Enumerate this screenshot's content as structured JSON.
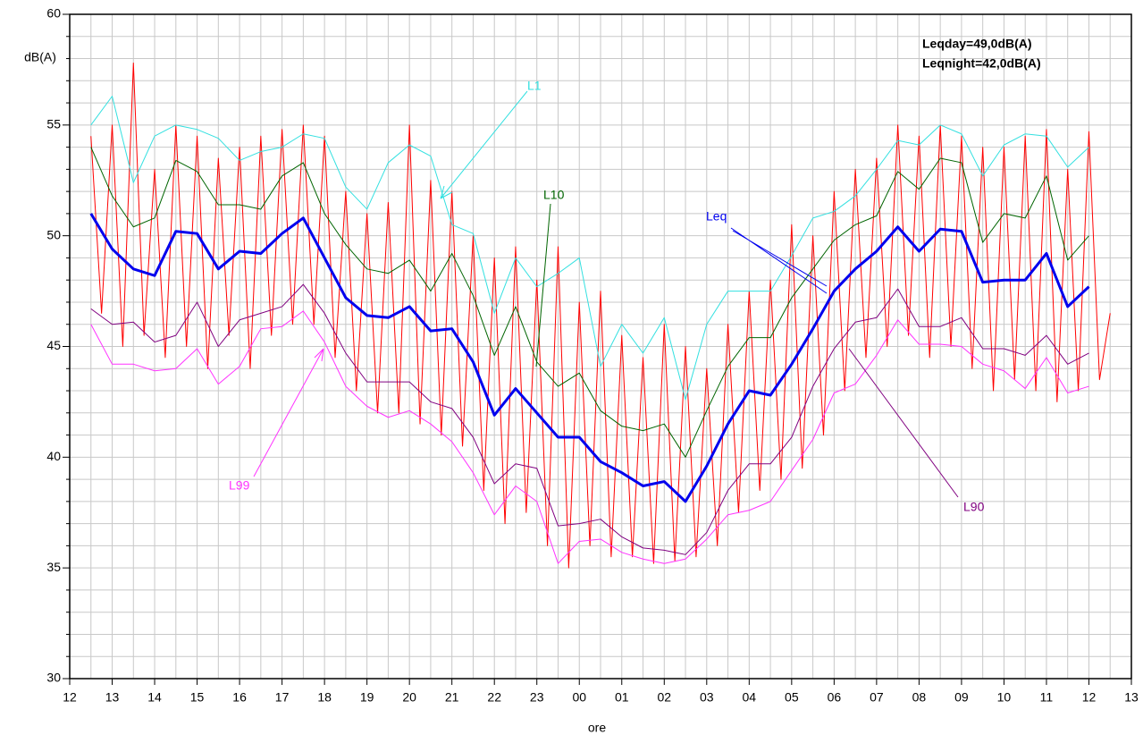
{
  "chart_data": {
    "type": "line",
    "y_label": "dB(A)",
    "x_label": "ore",
    "annotations": [
      "Leqday=49,0dB(A)",
      "Leqnight=42,0dB(A)"
    ],
    "xlim": [
      0,
      25
    ],
    "ylim": [
      30,
      60
    ],
    "xticks": [
      {
        "value": 0,
        "label": "12"
      },
      {
        "value": 1,
        "label": "13"
      },
      {
        "value": 2,
        "label": "14"
      },
      {
        "value": 3,
        "label": "15"
      },
      {
        "value": 4,
        "label": "16"
      },
      {
        "value": 5,
        "label": "17"
      },
      {
        "value": 6,
        "label": "18"
      },
      {
        "value": 7,
        "label": "19"
      },
      {
        "value": 8,
        "label": "20"
      },
      {
        "value": 9,
        "label": "21"
      },
      {
        "value": 10,
        "label": "22"
      },
      {
        "value": 11,
        "label": "23"
      },
      {
        "value": 12,
        "label": "00"
      },
      {
        "value": 13,
        "label": "01"
      },
      {
        "value": 14,
        "label": "02"
      },
      {
        "value": 15,
        "label": "03"
      },
      {
        "value": 16,
        "label": "04"
      },
      {
        "value": 17,
        "label": "05"
      },
      {
        "value": 18,
        "label": "06"
      },
      {
        "value": 19,
        "label": "07"
      },
      {
        "value": 20,
        "label": "08"
      },
      {
        "value": 21,
        "label": "09"
      },
      {
        "value": 22,
        "label": "10"
      },
      {
        "value": 23,
        "label": "11"
      },
      {
        "value": 24,
        "label": "12"
      },
      {
        "value": 25,
        "label": "13"
      }
    ],
    "yticks": [
      30,
      35,
      40,
      45,
      50,
      55,
      60
    ],
    "grid": true,
    "series": [
      {
        "color": "#ff0000",
        "width": 1,
        "x": [
          0.5,
          0.75,
          1,
          1.25,
          1.5,
          1.75,
          2,
          2.25,
          2.5,
          2.75,
          3,
          3.25,
          3.5,
          3.75,
          4,
          4.25,
          4.5,
          4.75,
          5,
          5.25,
          5.5,
          5.75,
          6,
          6.25,
          6.5,
          6.75,
          7,
          7.25,
          7.5,
          7.75,
          8,
          8.25,
          8.5,
          8.75,
          9,
          9.25,
          9.5,
          9.75,
          10,
          10.25,
          10.5,
          10.75,
          11,
          11.25,
          11.5,
          11.75,
          12,
          12.25,
          12.5,
          12.75,
          13,
          13.25,
          13.5,
          13.75,
          14,
          14.25,
          14.5,
          14.75,
          15,
          15.25,
          15.5,
          15.75,
          16,
          16.25,
          16.5,
          16.75,
          17,
          17.25,
          17.5,
          17.75,
          18,
          18.25,
          18.5,
          18.75,
          19,
          19.25,
          19.5,
          19.75,
          20,
          20.25,
          20.5,
          20.75,
          21,
          21.25,
          21.5,
          21.75,
          22,
          22.25,
          22.5,
          22.75,
          23,
          23.25,
          23.5,
          23.75,
          24,
          24.25,
          24.5
        ],
        "values": [
          54.5,
          46.5,
          55,
          45,
          57.8,
          45.5,
          53,
          44.5,
          55,
          45,
          54.5,
          44,
          53.5,
          45.5,
          54,
          44,
          54.5,
          45.5,
          54.8,
          46,
          55,
          46,
          54.5,
          44.5,
          52,
          43,
          51,
          42,
          51.5,
          42,
          55,
          41.5,
          52.5,
          41,
          52,
          40.5,
          50,
          38.5,
          49,
          37,
          49.5,
          37.5,
          48,
          36,
          49.5,
          35,
          47,
          36,
          47.5,
          35.5,
          45.5,
          35.5,
          44.5,
          35.2,
          46,
          35.3,
          45,
          35.5,
          44,
          36,
          46,
          37.5,
          47.5,
          38.5,
          48,
          39,
          50.5,
          39.5,
          50,
          41,
          52,
          43,
          53,
          44.5,
          53.5,
          45,
          55,
          45.5,
          54.5,
          44.5,
          55,
          45,
          54.5,
          44,
          54,
          43,
          54,
          43.5,
          54.5,
          43,
          54.8,
          42.5,
          53,
          43,
          54.7,
          43.5,
          46.5
        ]
      },
      {
        "name": "L99",
        "color": "#ff33ff",
        "width": 1,
        "x": [
          0.5,
          1,
          1.5,
          2,
          2.5,
          3,
          3.5,
          4,
          4.5,
          5,
          5.5,
          6,
          6.5,
          7,
          7.5,
          8,
          8.5,
          9,
          9.5,
          10,
          10.5,
          11,
          11.5,
          12,
          12.5,
          13,
          13.5,
          14,
          14.5,
          15,
          15.5,
          16,
          16.5,
          17,
          17.5,
          18,
          18.5,
          19,
          19.5,
          20,
          20.5,
          21,
          21.5,
          22,
          22.5,
          23,
          23.5,
          24
        ],
        "values": [
          46.0,
          44.2,
          44.2,
          43.9,
          44.0,
          44.9,
          43.3,
          44.1,
          45.8,
          45.9,
          46.6,
          45.2,
          43.2,
          42.3,
          41.8,
          42.1,
          41.5,
          40.7,
          39.3,
          37.4,
          38.7,
          38.0,
          35.2,
          36.2,
          36.3,
          35.7,
          35.4,
          35.2,
          35.4,
          36.3,
          37.4,
          37.6,
          38.0,
          39.4,
          40.8,
          42.9,
          43.3,
          44.6,
          46.2,
          45.1,
          45.1,
          45.0,
          44.2,
          43.9,
          43.1,
          44.5,
          42.9,
          43.2
        ]
      },
      {
        "name": "L90",
        "color": "#800080",
        "width": 1,
        "x": [
          0.5,
          1,
          1.5,
          2,
          2.5,
          3,
          3.5,
          4,
          4.5,
          5,
          5.5,
          6,
          6.5,
          7,
          7.5,
          8,
          8.5,
          9,
          9.5,
          10,
          10.5,
          11,
          11.5,
          12,
          12.5,
          13,
          13.5,
          14,
          14.5,
          15,
          15.5,
          16,
          16.5,
          17,
          17.5,
          18,
          18.5,
          19,
          19.5,
          20,
          20.5,
          21,
          21.5,
          22,
          22.5,
          23,
          23.5,
          24
        ],
        "values": [
          46.7,
          46.0,
          46.1,
          45.2,
          45.5,
          47.0,
          45.0,
          46.2,
          46.5,
          46.8,
          47.8,
          46.5,
          44.7,
          43.4,
          43.4,
          43.4,
          42.5,
          42.2,
          40.9,
          38.8,
          39.7,
          39.5,
          36.9,
          37.0,
          37.2,
          36.4,
          35.9,
          35.8,
          35.6,
          36.6,
          38.5,
          39.7,
          39.7,
          40.9,
          43.2,
          44.9,
          46.1,
          46.3,
          47.6,
          45.9,
          45.9,
          46.3,
          44.9,
          44.9,
          44.6,
          45.5,
          44.2,
          44.7
        ]
      },
      {
        "name": "L10",
        "color": "#006400",
        "width": 1,
        "x": [
          0.5,
          1,
          1.5,
          2,
          2.5,
          3,
          3.5,
          4,
          4.5,
          5,
          5.5,
          6,
          6.5,
          7,
          7.5,
          8,
          8.5,
          9,
          9.5,
          10,
          10.5,
          11,
          11.5,
          12,
          12.5,
          13,
          13.5,
          14,
          14.5,
          15,
          15.5,
          16,
          16.5,
          17,
          17.5,
          18,
          18.5,
          19,
          19.5,
          20,
          20.5,
          21,
          21.5,
          22,
          22.5,
          23,
          23.5,
          24
        ],
        "values": [
          54.0,
          51.8,
          50.4,
          50.8,
          53.4,
          52.9,
          51.4,
          51.4,
          51.2,
          52.7,
          53.3,
          51.0,
          49.6,
          48.5,
          48.3,
          48.9,
          47.5,
          49.2,
          47.3,
          44.6,
          46.8,
          44.3,
          43.2,
          43.8,
          42.1,
          41.4,
          41.2,
          41.5,
          40.0,
          42.1,
          44.1,
          45.4,
          45.4,
          47.2,
          48.5,
          49.8,
          50.5,
          50.9,
          52.9,
          52.1,
          53.5,
          53.3,
          49.7,
          51.0,
          50.8,
          52.7,
          48.9,
          50.0
        ]
      },
      {
        "name": "L1",
        "color": "#33e0e0",
        "width": 1,
        "x": [
          0.5,
          1,
          1.5,
          2,
          2.5,
          3,
          3.5,
          4,
          4.5,
          5,
          5.5,
          6,
          6.5,
          7,
          7.5,
          8,
          8.5,
          9,
          9.5,
          10,
          10.5,
          11,
          11.5,
          12,
          12.5,
          13,
          13.5,
          14,
          14.5,
          15,
          15.5,
          16,
          16.5,
          17,
          17.5,
          18,
          18.5,
          19,
          19.5,
          20,
          20.5,
          21,
          21.5,
          22,
          22.5,
          23,
          23.5,
          24
        ],
        "values": [
          55.0,
          56.3,
          52.4,
          54.5,
          55.0,
          54.8,
          54.4,
          53.4,
          53.8,
          54.0,
          54.6,
          54.4,
          52.2,
          51.2,
          53.3,
          54.1,
          53.6,
          50.5,
          50.1,
          46.5,
          49.0,
          47.7,
          48.3,
          49.0,
          44.1,
          46.0,
          44.7,
          46.3,
          42.6,
          46.0,
          47.5,
          47.5,
          47.5,
          49.1,
          50.8,
          51.1,
          51.8,
          53.0,
          54.3,
          54.1,
          55.0,
          54.6,
          52.7,
          54.1,
          54.6,
          54.5,
          53.1,
          54.0
        ]
      },
      {
        "name": "Leq",
        "color": "#0000ee",
        "width": 3,
        "x": [
          0.5,
          1,
          1.5,
          2,
          2.5,
          3,
          3.5,
          4,
          4.5,
          5,
          5.5,
          6,
          6.5,
          7,
          7.5,
          8,
          8.5,
          9,
          9.5,
          10,
          10.5,
          11,
          11.5,
          12,
          12.5,
          13,
          13.5,
          14,
          14.5,
          15,
          15.5,
          16,
          16.5,
          17,
          17.5,
          18,
          18.5,
          19,
          19.5,
          20,
          20.5,
          21,
          21.5,
          22,
          22.5,
          23,
          23.5,
          24
        ],
        "values": [
          51.0,
          49.4,
          48.5,
          48.2,
          50.2,
          50.1,
          48.5,
          49.3,
          49.2,
          50.1,
          50.8,
          49.0,
          47.2,
          46.4,
          46.3,
          46.8,
          45.7,
          45.8,
          44.3,
          41.9,
          43.1,
          42.0,
          40.9,
          40.9,
          39.8,
          39.3,
          38.7,
          38.9,
          38.0,
          39.6,
          41.5,
          43.0,
          42.8,
          44.2,
          45.8,
          47.5,
          48.5,
          49.3,
          50.4,
          49.3,
          50.3,
          50.2,
          47.9,
          48.0,
          48.0,
          49.2,
          46.8,
          47.7
        ]
      }
    ]
  }
}
